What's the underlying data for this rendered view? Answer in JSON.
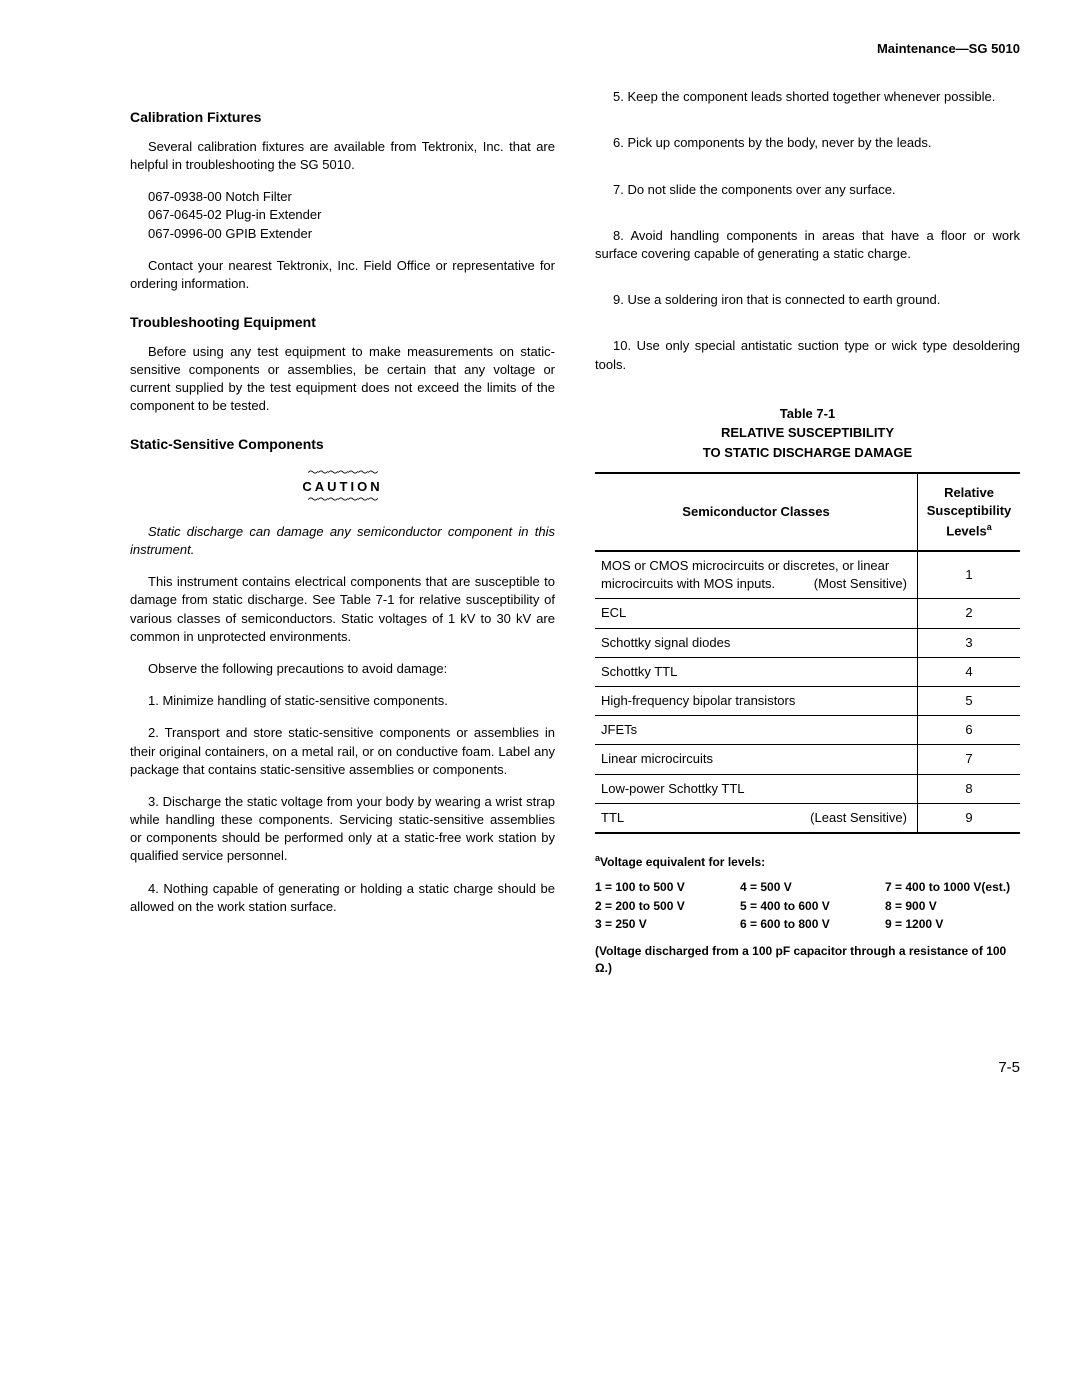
{
  "header": "Maintenance—SG 5010",
  "left": {
    "h_calib": "Calibration Fixtures",
    "calib_p1": "Several calibration fixtures are available from Tektronix, Inc. that are helpful in troubleshooting the SG 5010.",
    "fixtures": [
      "067-0938-00 Notch Filter",
      "067-0645-02 Plug-in Extender",
      "067-0996-00 GPIB Extender"
    ],
    "calib_p2": "Contact your nearest Tektronix, Inc. Field Office or representative for ordering information.",
    "h_trouble": "Troubleshooting Equipment",
    "trouble_p1": "Before using any test equipment to make measurements on static-sensitive components or assemblies, be certain that any voltage or current supplied by the test equipment does not exceed the limits of the component to be tested.",
    "h_static": "Static-Sensitive Components",
    "caution_label": "CAUTION",
    "caution_text": "Static discharge can damage any semiconductor component in this instrument.",
    "static_p1": "This instrument contains electrical components that are susceptible to damage from static discharge. See Table 7-1 for relative susceptibility of various classes of semiconductors. Static voltages of 1 kV to 30 kV are common in unprotected environments.",
    "static_p2": "Observe the following precautions to avoid damage:",
    "prec1": "1. Minimize handling of static-sensitive components.",
    "prec2": "2. Transport and store static-sensitive components or assemblies in their original containers, on a metal rail, or on conductive foam. Label any package that contains static-sensitive assemblies or components.",
    "prec3": "3. Discharge the static voltage from your body by wearing a wrist strap while handling these components. Servicing static-sensitive assemblies or components should be performed only at a static-free work station by qualified service personnel.",
    "prec4": "4. Nothing capable of generating or holding a static charge should be allowed on the work station surface."
  },
  "right": {
    "prec5": "5. Keep the component leads shorted together whenever possible.",
    "prec6": "6. Pick up components by the body, never by the leads.",
    "prec7": "7. Do not slide the components over any surface.",
    "prec8": "8. Avoid handling components in areas that have a floor or work surface covering capable of generating a static charge.",
    "prec9": "9. Use a soldering iron that is connected to earth ground.",
    "prec10": "10. Use only special antistatic suction type or wick type desoldering tools.",
    "table_num": "Table 7-1",
    "table_title1": "RELATIVE SUSCEPTIBILITY",
    "table_title2": "TO STATIC DISCHARGE DAMAGE",
    "th1": "Semiconductor Classes",
    "th2_a": "Relative",
    "th2_b": "Susceptibility",
    "th2_c": "Levels",
    "rows": [
      {
        "c1": "MOS or CMOS microcircuits or discretes, or linear microcircuits with MOS inputs.",
        "note": "(Most Sensitive)",
        "c2": "1"
      },
      {
        "c1": "ECL",
        "c2": "2"
      },
      {
        "c1": "Schottky signal diodes",
        "c2": "3"
      },
      {
        "c1": "Schottky TTL",
        "c2": "4"
      },
      {
        "c1": "High-frequency bipolar transistors",
        "c2": "5"
      },
      {
        "c1": "JFETs",
        "c2": "6"
      },
      {
        "c1": "Linear microcircuits",
        "c2": "7"
      },
      {
        "c1": "Low-power Schottky TTL",
        "c2": "8"
      },
      {
        "c1": "TTL",
        "note": "(Least Sensitive)",
        "c2": "9"
      }
    ],
    "footnote_title": "Voltage equivalent for levels:",
    "levels": [
      "1 = 100 to 500 V",
      "4 = 500 V",
      "7 = 400 to 1000 V(est.)",
      "2 = 200 to 500 V",
      "5 = 400 to 600 V",
      "8 = 900 V",
      "3 = 250 V",
      "6 = 600 to 800 V",
      "9 = 1200 V"
    ],
    "final_note": "(Voltage discharged from a 100 pF capacitor through a resistance of 100 Ω.)"
  },
  "page_num": "7-5"
}
